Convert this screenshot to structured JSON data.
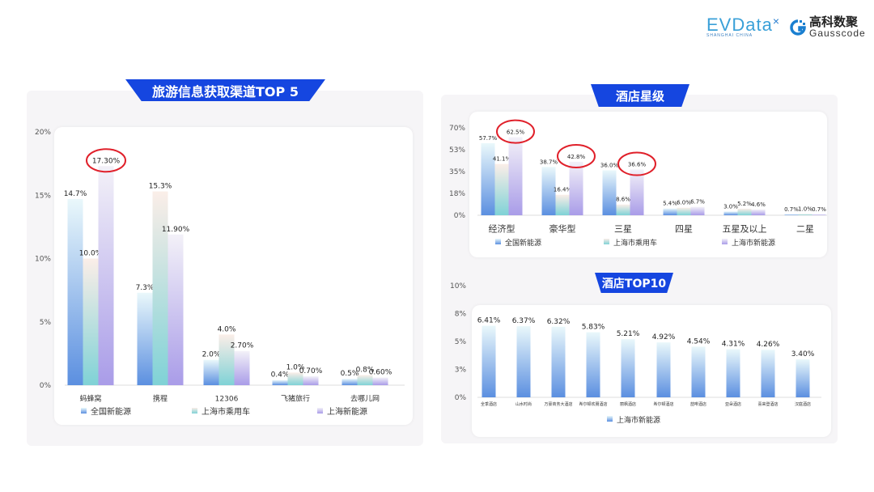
{
  "logos": {
    "evdata": "EVData",
    "evdata_sub": "SHANGHAI CHINA",
    "gauss_cn": "高科数聚",
    "gauss_en": "Gausscode"
  },
  "colors": {
    "banner": "#1546e0",
    "highlight_circle": "#e0202a",
    "series": [
      "#5b8fe0",
      "#7fd2d6",
      "#a99ce8"
    ]
  },
  "chart_data": [
    {
      "type": "bar",
      "title": "旅游信息获取渠道TOP 5",
      "categories": [
        "蚂蜂窝",
        "携程",
        "12306",
        "飞猪旅行",
        "去哪儿网"
      ],
      "series": [
        {
          "name": "全国新能源",
          "values": [
            14.7,
            7.3,
            2.0,
            0.4,
            0.5
          ],
          "labels": [
            "14.7%",
            "7.3%",
            "2.0%",
            "0.4%",
            "0.5%"
          ]
        },
        {
          "name": "上海市乘用车",
          "values": [
            10.0,
            15.3,
            4.0,
            1.0,
            0.8
          ],
          "labels": [
            "10.0%",
            "15.3%",
            "4.0%",
            "1.0%",
            "0.8%"
          ]
        },
        {
          "name": "上海新能源",
          "values": [
            17.3,
            11.9,
            2.7,
            0.7,
            0.6
          ],
          "labels": [
            "17.30%",
            "11.90%",
            "2.70%",
            "0.70%",
            "0.60%"
          ]
        }
      ],
      "yticks": [
        "0%",
        "5%",
        "10%",
        "15%",
        "20%"
      ],
      "ylim": [
        0,
        20
      ],
      "legend": "bottom",
      "highlighted": [
        [
          2,
          0
        ]
      ]
    },
    {
      "type": "bar",
      "title": "酒店星级",
      "categories": [
        "经济型",
        "豪华型",
        "三星",
        "四星",
        "五星及以上",
        "二星"
      ],
      "series": [
        {
          "name": "全国新能源",
          "values": [
            57.7,
            38.7,
            36.0,
            5.4,
            3.0,
            0.7
          ],
          "labels": [
            "57.7%",
            "38.7%",
            "36.0%",
            "5.4%",
            "3.0%",
            "0.7%"
          ]
        },
        {
          "name": "上海市乘用车",
          "values": [
            41.1,
            16.4,
            8.6,
            6.0,
            5.2,
            1.0
          ],
          "labels": [
            "41.1%",
            "16.4%",
            "8.6%",
            "6.0%",
            "5.2%",
            "1.0%"
          ]
        },
        {
          "name": "上海市新能源",
          "values": [
            62.5,
            42.8,
            36.6,
            6.7,
            4.6,
            0.7
          ],
          "labels": [
            "62.5%",
            "42.8%",
            "36.6%",
            "6.7%",
            "4.6%",
            "0.7%"
          ]
        }
      ],
      "yticks": [
        "0%",
        "18%",
        "35%",
        "53%",
        "70%"
      ],
      "ylim": [
        0,
        70
      ],
      "legend": "bottom",
      "highlighted": [
        [
          2,
          0
        ],
        [
          2,
          1
        ],
        [
          2,
          2
        ]
      ]
    },
    {
      "type": "bar",
      "title": "酒店TOP10",
      "categories": [
        "全季酒店",
        "山水时尚",
        "万豪商务大酒店",
        "希尔顿欢朋酒店",
        "丽枫酒店",
        "希尔顿酒店",
        "喆啡酒店",
        "亚朵酒店",
        "喜来登酒店",
        "汉庭酒店"
      ],
      "series": [
        {
          "name": "上海市新能源",
          "values": [
            6.41,
            6.37,
            6.32,
            5.83,
            5.21,
            4.92,
            4.54,
            4.31,
            4.26,
            3.4
          ],
          "labels": [
            "6.41%",
            "6.37%",
            "6.32%",
            "5.83%",
            "5.21%",
            "4.92%",
            "4.54%",
            "4.31%",
            "4.26%",
            "3.40%"
          ]
        }
      ],
      "yticks": [
        "0%",
        "3%",
        "5%",
        "8%",
        "10%"
      ],
      "ylim": [
        0,
        10
      ],
      "legend": "bottom"
    }
  ]
}
